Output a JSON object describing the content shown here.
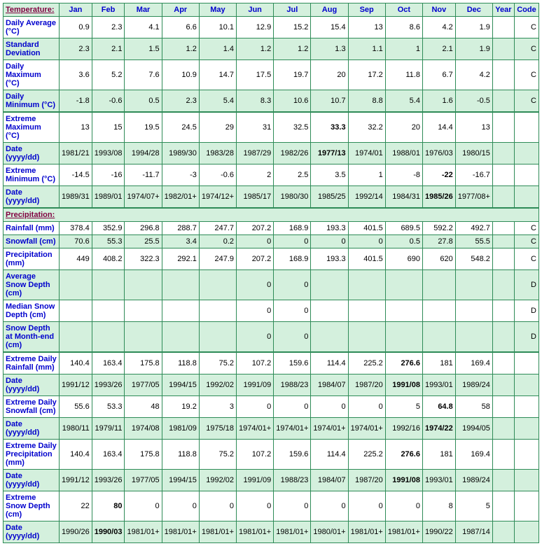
{
  "header": {
    "label_link": "Temperature:",
    "months": [
      "Jan",
      "Feb",
      "Mar",
      "Apr",
      "May",
      "Jun",
      "Jul",
      "Aug",
      "Sep",
      "Oct",
      "Nov",
      "Dec"
    ],
    "year": "Year",
    "code": "Code"
  },
  "precip_section_label": "Precipitation:",
  "rows": [
    {
      "id": "daily-avg",
      "label": "Daily Average (°C)",
      "shaded": false,
      "thickTop": false,
      "cells": [
        "0.9",
        "2.3",
        "4.1",
        "6.6",
        "10.1",
        "12.9",
        "15.2",
        "15.4",
        "13",
        "8.6",
        "4.2",
        "1.9",
        "",
        "C"
      ]
    },
    {
      "id": "std-dev",
      "label": "Standard Deviation",
      "shaded": true,
      "thickTop": false,
      "cells": [
        "2.3",
        "2.1",
        "1.5",
        "1.2",
        "1.4",
        "1.2",
        "1.2",
        "1.3",
        "1.1",
        "1",
        "2.1",
        "1.9",
        "",
        "C"
      ]
    },
    {
      "id": "daily-max",
      "label": "Daily Maximum (°C)",
      "shaded": false,
      "thickTop": false,
      "cells": [
        "3.6",
        "5.2",
        "7.6",
        "10.9",
        "14.7",
        "17.5",
        "19.7",
        "20",
        "17.2",
        "11.8",
        "6.7",
        "4.2",
        "",
        "C"
      ]
    },
    {
      "id": "daily-min",
      "label": "Daily Minimum (°C)",
      "shaded": true,
      "thickTop": false,
      "cells": [
        "-1.8",
        "-0.6",
        "0.5",
        "2.3",
        "5.4",
        "8.3",
        "10.6",
        "10.7",
        "8.8",
        "5.4",
        "1.6",
        "-0.5",
        "",
        "C"
      ]
    },
    {
      "id": "ext-max",
      "label": "Extreme Maximum (°C)",
      "shaded": false,
      "thickTop": true,
      "cells": [
        "13",
        "15",
        "19.5",
        "24.5",
        "29",
        "31",
        "32.5",
        "33.3",
        "32.2",
        "20",
        "14.4",
        "13",
        "",
        ""
      ],
      "bold": [
        7
      ]
    },
    {
      "id": "ext-max-date",
      "label": "Date (yyyy/dd)",
      "shaded": true,
      "thickTop": false,
      "cells": [
        "1981/21",
        "1993/08",
        "1994/28",
        "1989/30",
        "1983/28",
        "1987/29",
        "1982/26",
        "1977/13",
        "1974/01",
        "1988/01",
        "1976/03",
        "1980/15",
        "",
        ""
      ],
      "bold": [
        7
      ]
    },
    {
      "id": "ext-min",
      "label": "Extreme Minimum (°C)",
      "shaded": false,
      "thickTop": false,
      "cells": [
        "-14.5",
        "-16",
        "-11.7",
        "-3",
        "-0.6",
        "2",
        "2.5",
        "3.5",
        "1",
        "-8",
        "-22",
        "-16.7",
        "",
        ""
      ],
      "bold": [
        10
      ]
    },
    {
      "id": "ext-min-date",
      "label": "Date (yyyy/dd)",
      "shaded": true,
      "thickTop": false,
      "cells": [
        "1989/31",
        "1989/01",
        "1974/07+",
        "1982/01+",
        "1974/12+",
        "1985/17",
        "1980/30",
        "1985/25",
        "1992/14",
        "1984/31",
        "1985/26",
        "1977/08+",
        "",
        ""
      ],
      "bold": [
        10
      ]
    }
  ],
  "precip_rows": [
    {
      "id": "rainfall",
      "label": "Rainfall (mm)",
      "shaded": false,
      "thickTop": false,
      "cells": [
        "378.4",
        "352.9",
        "296.8",
        "288.7",
        "247.7",
        "207.2",
        "168.9",
        "193.3",
        "401.5",
        "689.5",
        "592.2",
        "492.7",
        "",
        "C"
      ]
    },
    {
      "id": "snowfall",
      "label": "Snowfall (cm)",
      "shaded": true,
      "thickTop": false,
      "cells": [
        "70.6",
        "55.3",
        "25.5",
        "3.4",
        "0.2",
        "0",
        "0",
        "0",
        "0",
        "0.5",
        "27.8",
        "55.5",
        "",
        "C"
      ]
    },
    {
      "id": "precip",
      "label": "Precipitation (mm)",
      "shaded": false,
      "thickTop": false,
      "cells": [
        "449",
        "408.2",
        "322.3",
        "292.1",
        "247.9",
        "207.2",
        "168.9",
        "193.3",
        "401.5",
        "690",
        "620",
        "548.2",
        "",
        "C"
      ]
    },
    {
      "id": "avg-snow-depth",
      "label": "Average Snow Depth (cm)",
      "shaded": true,
      "thickTop": false,
      "cells": [
        "",
        "",
        "",
        "",
        "",
        "0",
        "0",
        "",
        "",
        "",
        "",
        "",
        "",
        "D"
      ]
    },
    {
      "id": "med-snow-depth",
      "label": "Median Snow Depth (cm)",
      "shaded": false,
      "thickTop": false,
      "cells": [
        "",
        "",
        "",
        "",
        "",
        "0",
        "0",
        "",
        "",
        "",
        "",
        "",
        "",
        "D"
      ]
    },
    {
      "id": "snow-depth-end",
      "label": "Snow Depth at Month-end (cm)",
      "shaded": true,
      "thickTop": false,
      "cells": [
        "",
        "",
        "",
        "",
        "",
        "0",
        "0",
        "",
        "",
        "",
        "",
        "",
        "",
        "D"
      ]
    },
    {
      "id": "ext-daily-rain",
      "label": "Extreme Daily Rainfall (mm)",
      "shaded": false,
      "thickTop": true,
      "cells": [
        "140.4",
        "163.4",
        "175.8",
        "118.8",
        "75.2",
        "107.2",
        "159.6",
        "114.4",
        "225.2",
        "276.6",
        "181",
        "169.4",
        "",
        ""
      ],
      "bold": [
        9
      ]
    },
    {
      "id": "ext-daily-rain-date",
      "label": "Date (yyyy/dd)",
      "shaded": true,
      "thickTop": false,
      "cells": [
        "1991/12",
        "1993/26",
        "1977/05",
        "1994/15",
        "1992/02",
        "1991/09",
        "1988/23",
        "1984/07",
        "1987/20",
        "1991/08",
        "1993/01",
        "1989/24",
        "",
        ""
      ],
      "bold": [
        9
      ]
    },
    {
      "id": "ext-daily-snow",
      "label": "Extreme Daily Snowfall (cm)",
      "shaded": false,
      "thickTop": false,
      "cells": [
        "55.6",
        "53.3",
        "48",
        "19.2",
        "3",
        "0",
        "0",
        "0",
        "0",
        "5",
        "64.8",
        "58",
        "",
        ""
      ],
      "bold": [
        10
      ]
    },
    {
      "id": "ext-daily-snow-date",
      "label": "Date (yyyy/dd)",
      "shaded": true,
      "thickTop": false,
      "cells": [
        "1980/11",
        "1979/11",
        "1974/08",
        "1981/09",
        "1975/18",
        "1974/01+",
        "1974/01+",
        "1974/01+",
        "1974/01+",
        "1992/16",
        "1974/22",
        "1994/05",
        "",
        ""
      ],
      "bold": [
        10
      ]
    },
    {
      "id": "ext-daily-precip",
      "label": "Extreme Daily Precipitation (mm)",
      "shaded": false,
      "thickTop": false,
      "cells": [
        "140.4",
        "163.4",
        "175.8",
        "118.8",
        "75.2",
        "107.2",
        "159.6",
        "114.4",
        "225.2",
        "276.6",
        "181",
        "169.4",
        "",
        ""
      ],
      "bold": [
        9
      ]
    },
    {
      "id": "ext-daily-precip-date",
      "label": "Date (yyyy/dd)",
      "shaded": true,
      "thickTop": false,
      "cells": [
        "1991/12",
        "1993/26",
        "1977/05",
        "1994/15",
        "1992/02",
        "1991/09",
        "1988/23",
        "1984/07",
        "1987/20",
        "1991/08",
        "1993/01",
        "1989/24",
        "",
        ""
      ],
      "bold": [
        9
      ]
    },
    {
      "id": "ext-snow-depth",
      "label": "Extreme Snow Depth (cm)",
      "shaded": false,
      "thickTop": false,
      "cells": [
        "22",
        "80",
        "0",
        "0",
        "0",
        "0",
        "0",
        "0",
        "0",
        "0",
        "8",
        "5",
        "",
        ""
      ],
      "bold": [
        1
      ]
    },
    {
      "id": "ext-snow-depth-date",
      "label": "Date (yyyy/dd)",
      "shaded": true,
      "thickTop": false,
      "cells": [
        "1990/26",
        "1990/03",
        "1981/01+",
        "1981/01+",
        "1981/01+",
        "1981/01+",
        "1981/01+",
        "1980/01+",
        "1981/01+",
        "1981/01+",
        "1990/22",
        "1987/14",
        "",
        ""
      ],
      "bold": [
        1
      ]
    }
  ]
}
